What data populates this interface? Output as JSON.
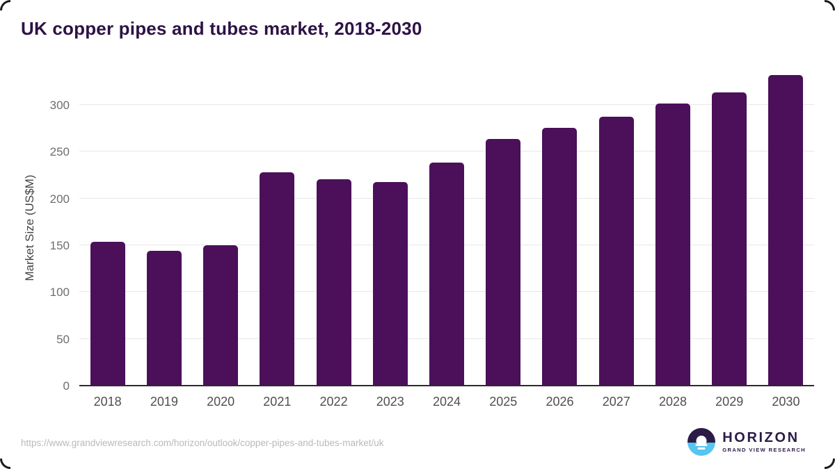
{
  "title": "UK copper pipes and tubes market, 2018-2030",
  "chart_data": {
    "type": "bar",
    "title": "UK copper pipes and tubes market, 2018-2030",
    "categories": [
      "2018",
      "2019",
      "2020",
      "2021",
      "2022",
      "2023",
      "2024",
      "2025",
      "2026",
      "2027",
      "2028",
      "2029",
      "2030"
    ],
    "values": [
      153,
      143,
      149,
      227,
      220,
      217,
      238,
      263,
      275,
      287,
      301,
      313,
      331
    ],
    "xlabel": "",
    "ylabel": "Market Size (US$M)",
    "ylim": [
      0,
      340
    ],
    "yticks": [
      0,
      50,
      100,
      150,
      200,
      250,
      300
    ],
    "grid": "horizontal",
    "legend": "none",
    "bar_color": "#4b1059"
  },
  "footer": {
    "source_url": "https://www.grandviewresearch.com/horizon/outlook/copper-pipes-and-tubes-market/uk",
    "logo": {
      "title": "HORIZON",
      "subtitle": "GRAND VIEW RESEARCH"
    }
  },
  "colors": {
    "bar": "#4b1059",
    "title_text": "#2d1245",
    "logo_dark": "#2b1b46",
    "logo_blue": "#56c5f0",
    "gridline": "#e7e7e7",
    "axis_line": "#2b2b2b",
    "tick_text": "#4f4f4f",
    "url_text": "#b9b9b9"
  }
}
